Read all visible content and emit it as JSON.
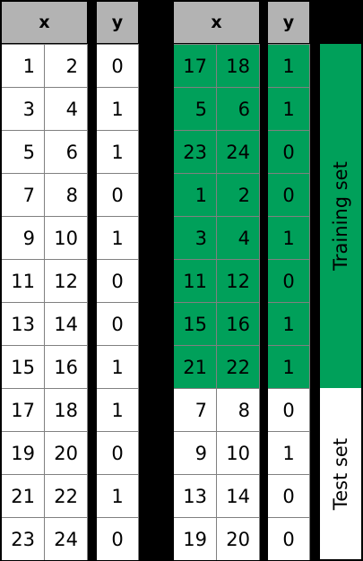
{
  "headers": {
    "x": "x",
    "y": "y"
  },
  "original": {
    "x": [
      [
        1,
        2
      ],
      [
        3,
        4
      ],
      [
        5,
        6
      ],
      [
        7,
        8
      ],
      [
        9,
        10
      ],
      [
        11,
        12
      ],
      [
        13,
        14
      ],
      [
        15,
        16
      ],
      [
        17,
        18
      ],
      [
        19,
        20
      ],
      [
        21,
        22
      ],
      [
        23,
        24
      ]
    ],
    "y": [
      0,
      1,
      1,
      0,
      1,
      0,
      0,
      1,
      1,
      0,
      1,
      0
    ]
  },
  "shuffled": {
    "x": [
      [
        17,
        18
      ],
      [
        5,
        6
      ],
      [
        23,
        24
      ],
      [
        1,
        2
      ],
      [
        3,
        4
      ],
      [
        11,
        12
      ],
      [
        15,
        16
      ],
      [
        21,
        22
      ],
      [
        7,
        8
      ],
      [
        9,
        10
      ],
      [
        13,
        14
      ],
      [
        19,
        20
      ]
    ],
    "y": [
      1,
      1,
      0,
      0,
      1,
      0,
      1,
      1,
      0,
      1,
      0,
      0
    ]
  },
  "split": {
    "training_label": "Training set",
    "test_label": "Test set",
    "training_rows": 8,
    "training_color": "#00a05a",
    "test_color": "#ffffff"
  }
}
